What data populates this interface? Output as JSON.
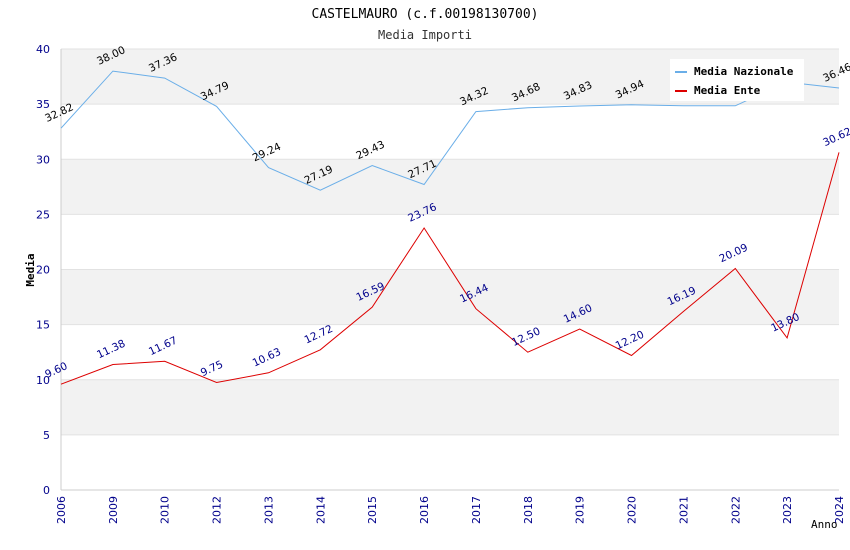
{
  "chart_data": {
    "type": "line",
    "title": "CASTELMAURO (c.f.00198130700)",
    "subtitle": "Media Importi",
    "ylabel": "Media",
    "xlabel": "Anno",
    "ylim": [
      0,
      40
    ],
    "yticks": [
      "0",
      "5",
      "10",
      "15",
      "20",
      "25",
      "30",
      "35",
      "40"
    ],
    "categories": [
      "2006",
      "2009",
      "2010",
      "2012",
      "2013",
      "2014",
      "2015",
      "2016",
      "2017",
      "2018",
      "2019",
      "2020",
      "2021",
      "2022",
      "2023",
      "2024"
    ],
    "legend_position": "top-right",
    "series": [
      {
        "name": "Media Nazionale",
        "color": "#6aaee8",
        "label_color": "#000000",
        "values": [
          32.82,
          38.0,
          37.36,
          34.79,
          29.24,
          27.19,
          29.43,
          27.71,
          34.32,
          34.68,
          34.83,
          34.94,
          34.85,
          34.85,
          37.0,
          36.46
        ],
        "labels": [
          "32.82",
          "38.00",
          "37.36",
          "34.79",
          "29.24",
          "27.19",
          "29.43",
          "27.71",
          "34.32",
          "34.68",
          "34.83",
          "34.94",
          "",
          "",
          "",
          "36.46"
        ]
      },
      {
        "name": "Media Ente",
        "color": "#dd0000",
        "label_color": "#00008b",
        "values": [
          9.6,
          11.38,
          11.67,
          9.75,
          10.63,
          12.72,
          16.59,
          23.76,
          16.44,
          12.5,
          14.6,
          12.2,
          16.19,
          20.09,
          13.8,
          30.62
        ],
        "labels": [
          "9.60",
          "11.38",
          "11.67",
          "9.75",
          "10.63",
          "12.72",
          "16.59",
          "23.76",
          "16.44",
          "12.50",
          "14.60",
          "12.20",
          "16.19",
          "20.09",
          "13.80",
          "30.62"
        ]
      }
    ]
  }
}
